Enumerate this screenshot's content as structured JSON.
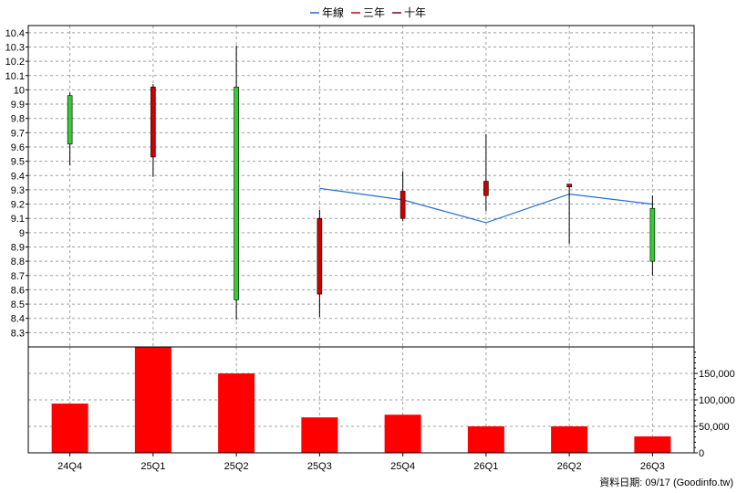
{
  "chart_data": {
    "type": "candlestick",
    "legend": [
      {
        "name": "年線",
        "color": "#1f6fd0"
      },
      {
        "name": "三年",
        "color": "#cc0000"
      },
      {
        "name": "十年",
        "color": "#800020"
      }
    ],
    "categories": [
      "24Q4",
      "25Q1",
      "25Q2",
      "25Q3",
      "25Q4",
      "26Q1",
      "26Q2",
      "26Q3"
    ],
    "price": {
      "ylim": [
        8.2,
        10.45
      ],
      "ticks": [
        8.3,
        8.4,
        8.5,
        8.6,
        8.7,
        8.8,
        8.9,
        9,
        9.1,
        9.2,
        9.3,
        9.4,
        9.5,
        9.6,
        9.7,
        9.8,
        9.9,
        10,
        10.1,
        10.2,
        10.3,
        10.4
      ],
      "candles": [
        {
          "open": 9.62,
          "high": 9.98,
          "low": 9.47,
          "close": 9.96
        },
        {
          "open": 10.02,
          "high": 10.04,
          "low": 9.39,
          "close": 9.53
        },
        {
          "open": 8.53,
          "high": 10.31,
          "low": 8.39,
          "close": 10.02
        },
        {
          "open": 9.1,
          "high": 9.16,
          "low": 8.41,
          "close": 8.57
        },
        {
          "open": 9.29,
          "high": 9.43,
          "low": 9.08,
          "close": 9.1
        },
        {
          "open": 9.36,
          "high": 9.69,
          "low": 9.15,
          "close": 9.26
        },
        {
          "open": 9.34,
          "high": 9.34,
          "low": 8.92,
          "close": 9.32
        },
        {
          "open": 8.8,
          "high": 9.26,
          "low": 8.7,
          "close": 9.17
        }
      ],
      "up_color": "#33cc33",
      "down_color": "#cc0000",
      "ma_line": {
        "name": "年線",
        "start_index": 3,
        "values": [
          9.31,
          9.23,
          9.07,
          9.27,
          9.2
        ]
      }
    },
    "volume": {
      "ylim": [
        0,
        200000
      ],
      "ticks": [
        0,
        50000,
        100000,
        150000
      ],
      "tick_labels": [
        "0",
        "50,000",
        "100,000",
        "150,000"
      ],
      "values": [
        93000,
        200000,
        150000,
        67000,
        72000,
        50000,
        50000,
        31000
      ],
      "color": "#ff0000"
    },
    "footer": "資料日期: 09/17  (Goodinfo.tw)"
  }
}
